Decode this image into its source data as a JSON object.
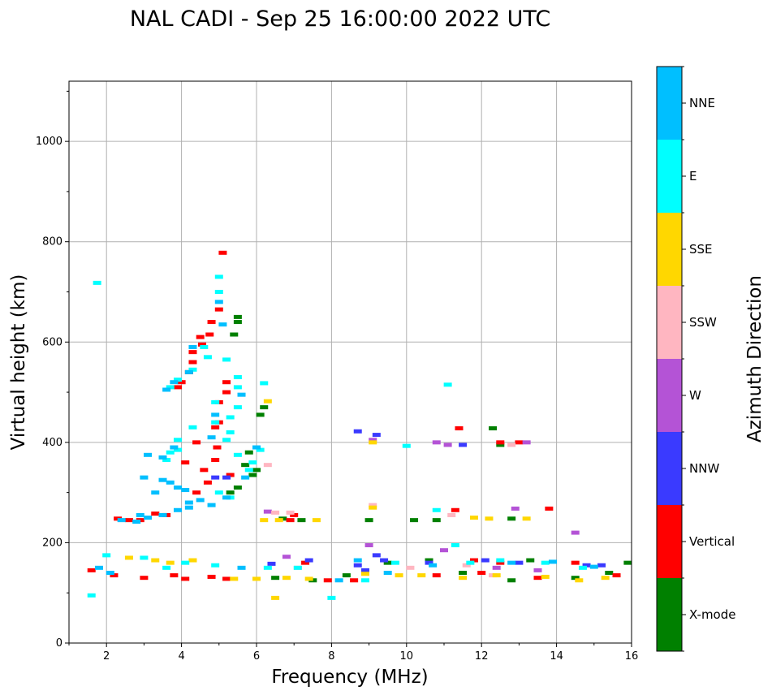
{
  "chart_data": {
    "type": "scatter",
    "title": "NAL CADI - Sep 25 16:00:00 2022 UTC",
    "xlabel": "Frequency (MHz)",
    "ylabel": "Virtual height (km)",
    "xlim": [
      1,
      16
    ],
    "ylim": [
      0,
      1120
    ],
    "xticks": [
      2,
      4,
      6,
      8,
      10,
      12,
      14,
      16
    ],
    "yticks": [
      0,
      200,
      400,
      600,
      800,
      1000
    ],
    "grid": true,
    "colorbar": {
      "label": "Azimuth Direction",
      "categories": [
        "X-mode",
        "Vertical",
        "NNW",
        "W",
        "SSW",
        "SSE",
        "E",
        "NNE"
      ],
      "colors": [
        "#008000",
        "#ff0000",
        "#3a3aff",
        "#b453d6",
        "#ffb6c1",
        "#ffd700",
        "#00ffff",
        "#00bfff"
      ]
    },
    "series": [
      {
        "name": "X-mode",
        "points": [
          [
            5.5,
            650
          ],
          [
            5.5,
            640
          ],
          [
            5.4,
            615
          ],
          [
            6.1,
            455
          ],
          [
            6.2,
            470
          ],
          [
            5.8,
            380
          ],
          [
            5.7,
            355
          ],
          [
            6.0,
            345
          ],
          [
            5.9,
            335
          ],
          [
            5.5,
            310
          ],
          [
            5.3,
            300
          ],
          [
            6.7,
            248
          ],
          [
            7.2,
            245
          ],
          [
            9.0,
            245
          ],
          [
            10.2,
            245
          ],
          [
            10.8,
            245
          ],
          [
            12.8,
            248
          ],
          [
            12.5,
            395
          ],
          [
            12.3,
            428
          ],
          [
            6.5,
            130
          ],
          [
            7.5,
            125
          ],
          [
            8.4,
            135
          ],
          [
            9.5,
            160
          ],
          [
            11.5,
            140
          ],
          [
            12.8,
            125
          ],
          [
            14.5,
            130
          ],
          [
            15.4,
            140
          ],
          [
            15.9,
            160
          ],
          [
            13.3,
            165
          ],
          [
            10.6,
            165
          ]
        ]
      },
      {
        "name": "Vertical",
        "points": [
          [
            5.1,
            778
          ],
          [
            5.0,
            665
          ],
          [
            4.8,
            640
          ],
          [
            4.75,
            615
          ],
          [
            4.5,
            610
          ],
          [
            4.55,
            595
          ],
          [
            4.3,
            580
          ],
          [
            4.3,
            560
          ],
          [
            4.2,
            540
          ],
          [
            4.0,
            520
          ],
          [
            3.9,
            510
          ],
          [
            5.2,
            520
          ],
          [
            5.2,
            500
          ],
          [
            5.0,
            480
          ],
          [
            5.0,
            440
          ],
          [
            4.9,
            430
          ],
          [
            4.4,
            400
          ],
          [
            4.1,
            360
          ],
          [
            4.95,
            390
          ],
          [
            4.9,
            365
          ],
          [
            4.6,
            345
          ],
          [
            4.4,
            300
          ],
          [
            4.7,
            320
          ],
          [
            5.3,
            335
          ],
          [
            2.3,
            248
          ],
          [
            2.6,
            245
          ],
          [
            2.9,
            245
          ],
          [
            3.6,
            255
          ],
          [
            3.3,
            258
          ],
          [
            11.4,
            428
          ],
          [
            13.0,
            400
          ],
          [
            12.5,
            400
          ],
          [
            7.0,
            255
          ],
          [
            6.9,
            245
          ],
          [
            11.3,
            265
          ],
          [
            13.8,
            268
          ],
          [
            1.6,
            145
          ],
          [
            2.2,
            135
          ],
          [
            3.0,
            130
          ],
          [
            3.8,
            135
          ],
          [
            4.1,
            128
          ],
          [
            4.8,
            132
          ],
          [
            5.2,
            128
          ],
          [
            7.9,
            125
          ],
          [
            8.6,
            125
          ],
          [
            10.8,
            135
          ],
          [
            12.0,
            140
          ],
          [
            13.5,
            130
          ],
          [
            15.6,
            135
          ],
          [
            14.5,
            160
          ],
          [
            12.5,
            160
          ],
          [
            11.8,
            165
          ],
          [
            7.3,
            160
          ]
        ]
      },
      {
        "name": "NNW",
        "points": [
          [
            4.9,
            330
          ],
          [
            5.2,
            330
          ],
          [
            8.7,
            422
          ],
          [
            9.2,
            415
          ],
          [
            11.5,
            395
          ],
          [
            12.1,
            165
          ],
          [
            10.6,
            160
          ],
          [
            8.7,
            155
          ],
          [
            7.4,
            165
          ],
          [
            9.2,
            175
          ],
          [
            13.0,
            160
          ],
          [
            14.8,
            155
          ],
          [
            15.2,
            155
          ],
          [
            6.4,
            158
          ],
          [
            8.9,
            145
          ],
          [
            9.4,
            165
          ]
        ]
      },
      {
        "name": "W",
        "points": [
          [
            10.8,
            400
          ],
          [
            11.1,
            395
          ],
          [
            13.2,
            400
          ],
          [
            12.9,
            268
          ],
          [
            14.5,
            220
          ],
          [
            6.3,
            262
          ],
          [
            9.1,
            405
          ],
          [
            6.8,
            172
          ],
          [
            9.0,
            195
          ],
          [
            11.0,
            185
          ],
          [
            12.4,
            150
          ],
          [
            13.5,
            145
          ]
        ]
      },
      {
        "name": "SSW",
        "points": [
          [
            6.3,
            355
          ],
          [
            6.5,
            260
          ],
          [
            6.9,
            260
          ],
          [
            11.2,
            255
          ],
          [
            9.1,
            275
          ],
          [
            12.8,
            395
          ],
          [
            7.1,
            150
          ],
          [
            10.1,
            150
          ],
          [
            11.6,
            155
          ],
          [
            12.3,
            135
          ]
        ]
      },
      {
        "name": "SSE",
        "points": [
          [
            6.3,
            482
          ],
          [
            9.1,
            400
          ],
          [
            6.2,
            245
          ],
          [
            6.6,
            245
          ],
          [
            7.6,
            245
          ],
          [
            9.1,
            270
          ],
          [
            11.8,
            250
          ],
          [
            12.2,
            248
          ],
          [
            13.2,
            248
          ],
          [
            6.5,
            90
          ],
          [
            2.6,
            170
          ],
          [
            3.3,
            165
          ],
          [
            3.7,
            160
          ],
          [
            4.3,
            165
          ],
          [
            5.4,
            128
          ],
          [
            6.0,
            128
          ],
          [
            6.8,
            130
          ],
          [
            7.4,
            128
          ],
          [
            8.9,
            138
          ],
          [
            9.8,
            135
          ],
          [
            10.4,
            135
          ],
          [
            11.5,
            130
          ],
          [
            12.4,
            135
          ],
          [
            13.7,
            132
          ],
          [
            14.6,
            125
          ],
          [
            15.3,
            130
          ]
        ]
      },
      {
        "name": "E",
        "points": [
          [
            5.0,
            730
          ],
          [
            5.0,
            700
          ],
          [
            4.6,
            590
          ],
          [
            4.7,
            570
          ],
          [
            4.3,
            545
          ],
          [
            3.9,
            525
          ],
          [
            3.7,
            510
          ],
          [
            5.2,
            565
          ],
          [
            5.5,
            530
          ],
          [
            5.5,
            510
          ],
          [
            6.2,
            518
          ],
          [
            4.9,
            480
          ],
          [
            5.5,
            470
          ],
          [
            5.3,
            450
          ],
          [
            4.9,
            440
          ],
          [
            5.3,
            420
          ],
          [
            5.2,
            405
          ],
          [
            4.3,
            430
          ],
          [
            3.9,
            405
          ],
          [
            3.9,
            385
          ],
          [
            3.7,
            380
          ],
          [
            3.6,
            365
          ],
          [
            6.1,
            385
          ],
          [
            5.5,
            375
          ],
          [
            5.8,
            345
          ],
          [
            5.9,
            360
          ],
          [
            5.0,
            300
          ],
          [
            5.3,
            290
          ],
          [
            10.0,
            393
          ],
          [
            11.1,
            515
          ],
          [
            10.8,
            265
          ],
          [
            11.3,
            195
          ],
          [
            2.0,
            175
          ],
          [
            3.0,
            170
          ],
          [
            3.6,
            150
          ],
          [
            4.1,
            160
          ],
          [
            4.9,
            155
          ],
          [
            6.3,
            150
          ],
          [
            7.1,
            150
          ],
          [
            8.0,
            90
          ],
          [
            8.9,
            125
          ],
          [
            9.7,
            160
          ],
          [
            11.7,
            160
          ],
          [
            12.5,
            165
          ],
          [
            13.7,
            160
          ],
          [
            14.7,
            150
          ],
          [
            1.6,
            95
          ],
          [
            1.75,
            718
          ]
        ]
      },
      {
        "name": "NNE",
        "points": [
          [
            5.0,
            680
          ],
          [
            5.1,
            635
          ],
          [
            4.3,
            590
          ],
          [
            4.2,
            540
          ],
          [
            3.8,
            520
          ],
          [
            3.6,
            505
          ],
          [
            4.9,
            455
          ],
          [
            5.6,
            495
          ],
          [
            4.8,
            410
          ],
          [
            3.8,
            390
          ],
          [
            3.5,
            370
          ],
          [
            3.1,
            375
          ],
          [
            3.0,
            330
          ],
          [
            3.5,
            325
          ],
          [
            3.7,
            320
          ],
          [
            3.9,
            310
          ],
          [
            4.2,
            280
          ],
          [
            4.5,
            285
          ],
          [
            4.8,
            275
          ],
          [
            5.2,
            290
          ],
          [
            2.4,
            245
          ],
          [
            2.8,
            242
          ],
          [
            3.1,
            250
          ],
          [
            3.5,
            255
          ],
          [
            3.9,
            265
          ],
          [
            4.2,
            270
          ],
          [
            4.1,
            305
          ],
          [
            6.0,
            390
          ],
          [
            5.7,
            330
          ],
          [
            3.3,
            300
          ],
          [
            2.9,
            255
          ],
          [
            8.2,
            125
          ],
          [
            8.7,
            165
          ],
          [
            9.5,
            140
          ],
          [
            10.7,
            155
          ],
          [
            12.8,
            160
          ],
          [
            13.9,
            162
          ],
          [
            15.0,
            152
          ],
          [
            1.8,
            150
          ],
          [
            2.1,
            140
          ],
          [
            5.6,
            150
          ]
        ]
      }
    ]
  }
}
